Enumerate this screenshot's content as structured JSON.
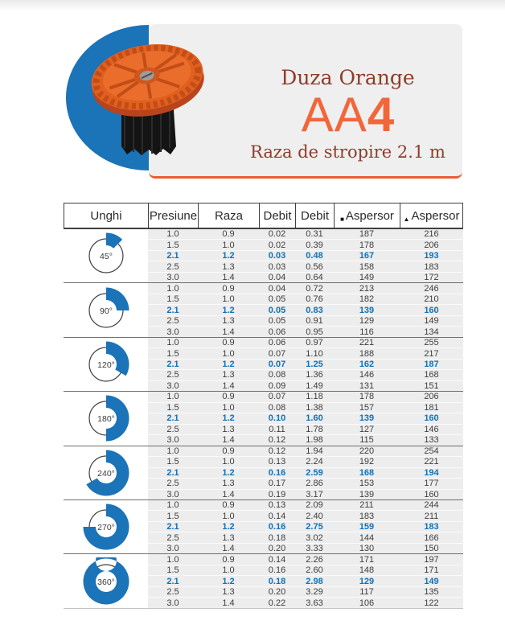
{
  "hero": {
    "title": "Duza Orange",
    "model_light": "AA",
    "model_bold": "4",
    "subtitle": "Raza de stropire 2.1 m"
  },
  "colors": {
    "accent_blue": "#1b73b8",
    "highlight_text_blue": "#0d72ba",
    "accent_orange": "#f2663a",
    "heading_maroon": "#8e3c2c",
    "rule_orange": "#e85c33",
    "row_background": "#ededed",
    "card_background": "#efefef"
  },
  "table": {
    "headers": [
      "Unghi",
      "Presiune",
      "Raza",
      "Debit",
      "Debit",
      "Aspersor",
      "Aspersor"
    ],
    "header_markers": {
      "5": "■",
      "6": "▲"
    },
    "highlight_pressure": "2.1",
    "groups": [
      {
        "angle_label": "45°",
        "angle_deg": 45,
        "rows": [
          [
            "1.0",
            "0.9",
            "0.02",
            "0.31",
            "187",
            "216"
          ],
          [
            "1.5",
            "1.0",
            "0.02",
            "0.39",
            "178",
            "206"
          ],
          [
            "2.1",
            "1.2",
            "0.03",
            "0.48",
            "167",
            "193"
          ],
          [
            "2.5",
            "1.3",
            "0.03",
            "0.56",
            "158",
            "183"
          ],
          [
            "3.0",
            "1.4",
            "0.04",
            "0.64",
            "149",
            "172"
          ]
        ]
      },
      {
        "angle_label": "90°",
        "angle_deg": 90,
        "rows": [
          [
            "1.0",
            "0.9",
            "0.04",
            "0.72",
            "213",
            "246"
          ],
          [
            "1.5",
            "1.0",
            "0.05",
            "0.76",
            "182",
            "210"
          ],
          [
            "2.1",
            "1.2",
            "0.05",
            "0.83",
            "139",
            "160"
          ],
          [
            "2.5",
            "1.3",
            "0.05",
            "0.91",
            "129",
            "149"
          ],
          [
            "3.0",
            "1.4",
            "0.06",
            "0.95",
            "116",
            "134"
          ]
        ]
      },
      {
        "angle_label": "120°",
        "angle_deg": 120,
        "rows": [
          [
            "1.0",
            "0.9",
            "0.06",
            "0.97",
            "221",
            "255"
          ],
          [
            "1.5",
            "1.0",
            "0.07",
            "1.10",
            "188",
            "217"
          ],
          [
            "2.1",
            "1.2",
            "0.07",
            "1.25",
            "162",
            "187"
          ],
          [
            "2.5",
            "1.3",
            "0.08",
            "1.36",
            "146",
            "168"
          ],
          [
            "3.0",
            "1.4",
            "0.09",
            "1.49",
            "131",
            "151"
          ]
        ]
      },
      {
        "angle_label": "180°",
        "angle_deg": 180,
        "rows": [
          [
            "1.0",
            "0.9",
            "0.07",
            "1.18",
            "178",
            "206"
          ],
          [
            "1.5",
            "1.0",
            "0.08",
            "1.38",
            "157",
            "181"
          ],
          [
            "2.1",
            "1.2",
            "0.10",
            "1.60",
            "139",
            "160"
          ],
          [
            "2.5",
            "1.3",
            "0.11",
            "1.78",
            "127",
            "146"
          ],
          [
            "3.0",
            "1.4",
            "0.12",
            "1.98",
            "115",
            "133"
          ]
        ]
      },
      {
        "angle_label": "240°",
        "angle_deg": 240,
        "rows": [
          [
            "1.0",
            "0.9",
            "0.12",
            "1.94",
            "220",
            "254"
          ],
          [
            "1.5",
            "1.0",
            "0.13",
            "2.24",
            "192",
            "221"
          ],
          [
            "2.1",
            "1.2",
            "0.16",
            "2.59",
            "168",
            "194"
          ],
          [
            "2.5",
            "1.3",
            "0.17",
            "2.86",
            "153",
            "177"
          ],
          [
            "3.0",
            "1.4",
            "0.19",
            "3.17",
            "139",
            "160"
          ]
        ]
      },
      {
        "angle_label": "270°",
        "angle_deg": 270,
        "rows": [
          [
            "1.0",
            "0.9",
            "0.13",
            "2.09",
            "211",
            "244"
          ],
          [
            "1.5",
            "1.0",
            "0.14",
            "2.40",
            "183",
            "211"
          ],
          [
            "2.1",
            "1.2",
            "0.16",
            "2.75",
            "159",
            "183"
          ],
          [
            "2.5",
            "1.3",
            "0.18",
            "3.02",
            "144",
            "166"
          ],
          [
            "3.0",
            "1.4",
            "0.20",
            "3.33",
            "130",
            "150"
          ]
        ]
      },
      {
        "angle_label": "360°",
        "angle_deg": 360,
        "rows": [
          [
            "1.0",
            "0.9",
            "0.14",
            "2.26",
            "171",
            "197"
          ],
          [
            "1.5",
            "1.0",
            "0.16",
            "2.60",
            "148",
            "171"
          ],
          [
            "2.1",
            "1.2",
            "0.18",
            "2.98",
            "129",
            "149"
          ],
          [
            "2.5",
            "1.3",
            "0.20",
            "3.29",
            "117",
            "135"
          ],
          [
            "3.0",
            "1.4",
            "0.22",
            "3.63",
            "106",
            "122"
          ]
        ]
      }
    ]
  }
}
